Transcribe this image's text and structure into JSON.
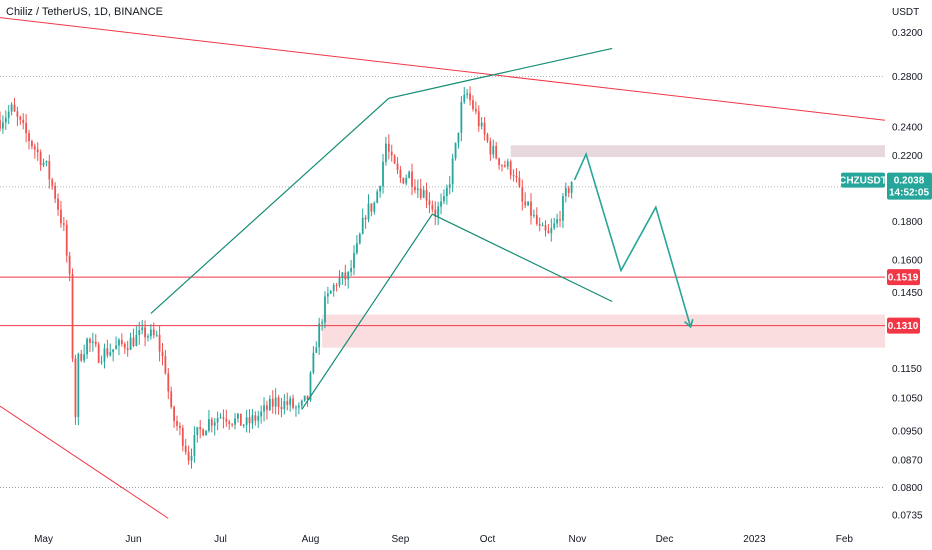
{
  "header": {
    "title": "Chiliz / TetherUS, 1D, BINANCE",
    "currency": "USDT"
  },
  "price_tag": {
    "symbol": "CHZUSDT",
    "price": "0.2038",
    "countdown": "14:52:05",
    "color": "#26a69a"
  },
  "levels": [
    {
      "label": "0.1519",
      "color": "#f23645"
    },
    {
      "label": "0.1310",
      "color": "#f23645"
    }
  ],
  "colors": {
    "up": "#26a69a",
    "down": "#ef5350",
    "trend": "#f23645",
    "pattern": "#138d75",
    "projection": "#26a69a"
  },
  "chart_data": {
    "type": "candlestick",
    "title": "Chiliz / TetherUS, 1D, BINANCE",
    "y_axis": {
      "scale": "log",
      "ylim": [
        0.072,
        0.345
      ],
      "ticks": [
        "0.3200",
        "0.2800",
        "0.2400",
        "0.2200",
        "0.1800",
        "0.1600",
        "0.1450",
        "0.1150",
        "0.1050",
        "0.0950",
        "0.0870",
        "0.0800",
        "0.0735"
      ]
    },
    "x_axis": {
      "start": "2022-04-16",
      "end": "2023-02-15",
      "ticks": [
        {
          "label": "May",
          "date": "2022-05-01"
        },
        {
          "label": "Jun",
          "date": "2022-06-01"
        },
        {
          "label": "Jul",
          "date": "2022-07-01"
        },
        {
          "label": "Aug",
          "date": "2022-08-01"
        },
        {
          "label": "Sep",
          "date": "2022-09-01"
        },
        {
          "label": "Oct",
          "date": "2022-10-01"
        },
        {
          "label": "Nov",
          "date": "2022-11-01"
        },
        {
          "label": "Dec",
          "date": "2022-12-01"
        },
        {
          "label": "2023",
          "date": "2023-01-01"
        },
        {
          "label": "Feb",
          "date": "2023-02-01"
        }
      ]
    },
    "price_path": [
      [
        "2022-04-16",
        0.245
      ],
      [
        "2022-04-20",
        0.253
      ],
      [
        "2022-04-24",
        0.238
      ],
      [
        "2022-04-28",
        0.225
      ],
      [
        "2022-05-02",
        0.212
      ],
      [
        "2022-05-05",
        0.195
      ],
      [
        "2022-05-08",
        0.175
      ],
      [
        "2022-05-10",
        0.15
      ],
      [
        "2022-05-11",
        0.12
      ],
      [
        "2022-05-12",
        0.1
      ],
      [
        "2022-05-13",
        0.118
      ],
      [
        "2022-05-16",
        0.125
      ],
      [
        "2022-05-20",
        0.12
      ],
      [
        "2022-05-25",
        0.122
      ],
      [
        "2022-05-31",
        0.125
      ],
      [
        "2022-06-05",
        0.128
      ],
      [
        "2022-06-09",
        0.126
      ],
      [
        "2022-06-12",
        0.115
      ],
      [
        "2022-06-14",
        0.1
      ],
      [
        "2022-06-18",
        0.093
      ],
      [
        "2022-06-20",
        0.088
      ],
      [
        "2022-06-23",
        0.094
      ],
      [
        "2022-06-27",
        0.098
      ],
      [
        "2022-07-02",
        0.1
      ],
      [
        "2022-07-06",
        0.098
      ],
      [
        "2022-07-10",
        0.097
      ],
      [
        "2022-07-15",
        0.1
      ],
      [
        "2022-07-20",
        0.104
      ],
      [
        "2022-07-25",
        0.103
      ],
      [
        "2022-07-28",
        0.101
      ],
      [
        "2022-07-31",
        0.105
      ],
      [
        "2022-08-03",
        0.125
      ],
      [
        "2022-08-06",
        0.14
      ],
      [
        "2022-08-10",
        0.15
      ],
      [
        "2022-08-14",
        0.152
      ],
      [
        "2022-08-17",
        0.165
      ],
      [
        "2022-08-20",
        0.185
      ],
      [
        "2022-08-23",
        0.19
      ],
      [
        "2022-08-25",
        0.205
      ],
      [
        "2022-08-27",
        0.228
      ],
      [
        "2022-08-29",
        0.215
      ],
      [
        "2022-09-01",
        0.205
      ],
      [
        "2022-09-04",
        0.208
      ],
      [
        "2022-09-07",
        0.2
      ],
      [
        "2022-09-10",
        0.195
      ],
      [
        "2022-09-13",
        0.185
      ],
      [
        "2022-09-16",
        0.19
      ],
      [
        "2022-09-18",
        0.205
      ],
      [
        "2022-09-20",
        0.225
      ],
      [
        "2022-09-22",
        0.255
      ],
      [
        "2022-09-24",
        0.265
      ],
      [
        "2022-09-26",
        0.255
      ],
      [
        "2022-09-29",
        0.238
      ],
      [
        "2022-10-02",
        0.225
      ],
      [
        "2022-10-06",
        0.215
      ],
      [
        "2022-10-10",
        0.21
      ],
      [
        "2022-10-13",
        0.19
      ],
      [
        "2022-10-16",
        0.185
      ],
      [
        "2022-10-19",
        0.175
      ],
      [
        "2022-10-22",
        0.172
      ],
      [
        "2022-10-25",
        0.18
      ],
      [
        "2022-10-28",
        0.195
      ],
      [
        "2022-10-30",
        0.2038
      ]
    ],
    "key_levels": [
      0.1519,
      0.131
    ],
    "zones": [
      {
        "from": 0.219,
        "to": 0.227
      },
      {
        "from": 0.1225,
        "to": 0.1355
      }
    ],
    "trendlines": [
      {
        "kind": "resistance",
        "points": [
          [
            "2022-04-16",
            0.335
          ],
          [
            "2023-02-15",
            0.245
          ]
        ]
      },
      {
        "kind": "support",
        "points": [
          [
            "2022-04-16",
            0.1025
          ],
          [
            "2022-06-13",
            0.0728
          ]
        ]
      }
    ],
    "pattern": [
      [
        [
          "2022-06-07",
          0.136
        ],
        [
          "2022-08-28",
          0.262
        ],
        [
          "2022-09-25",
          0.277
        ],
        [
          "2022-11-13",
          0.305
        ]
      ],
      [
        [
          "2022-07-29",
          0.1015
        ],
        [
          "2022-09-12",
          0.184
        ],
        [
          "2022-11-13",
          0.141
        ]
      ]
    ],
    "projection": [
      [
        "2022-10-31",
        0.2043
      ],
      [
        "2022-11-04",
        0.221
      ],
      [
        "2022-11-16",
        0.155
      ],
      [
        "2022-11-28",
        0.188
      ],
      [
        "2022-12-10",
        0.1305
      ]
    ]
  }
}
